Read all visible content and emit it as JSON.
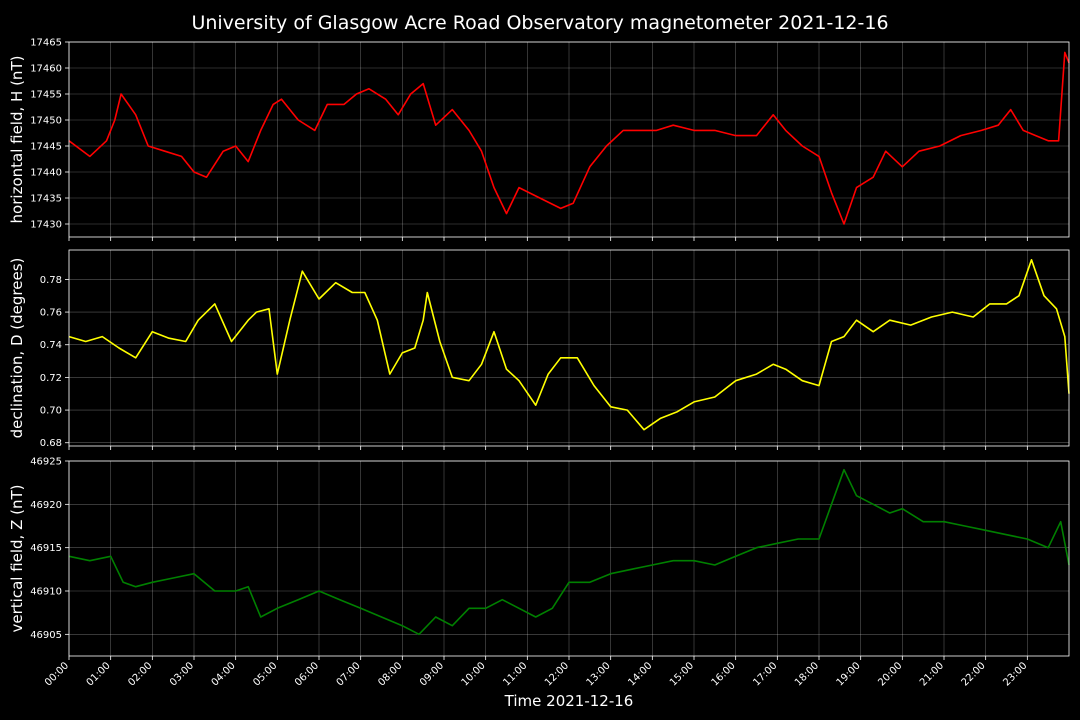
{
  "chart_data": {
    "type": "line",
    "title": "University of Glasgow Acre Road Observatory magnetometer 2021-12-16",
    "xlabel": "Time 2021-12-16",
    "x_ticks": [
      "00:00",
      "01:00",
      "02:00",
      "03:00",
      "04:00",
      "05:00",
      "06:00",
      "07:00",
      "08:00",
      "09:00",
      "10:00",
      "11:00",
      "12:00",
      "13:00",
      "14:00",
      "15:00",
      "16:00",
      "17:00",
      "18:00",
      "19:00",
      "20:00",
      "21:00",
      "22:00",
      "23:00"
    ],
    "xlim": [
      0,
      24
    ],
    "grid": true,
    "panels": [
      {
        "ylabel": "horizontal field, H (nT)",
        "color": "#ff0000",
        "ylim": [
          17427.5,
          17465
        ],
        "yticks": [
          17430,
          17435,
          17440,
          17445,
          17450,
          17455,
          17460,
          17465
        ],
        "tick_decimals": 0,
        "x": [
          0,
          0.5,
          0.9,
          1.1,
          1.25,
          1.6,
          1.9,
          2.3,
          2.7,
          3.0,
          3.3,
          3.7,
          4.0,
          4.3,
          4.6,
          4.9,
          5.1,
          5.5,
          5.9,
          6.2,
          6.6,
          6.9,
          7.2,
          7.6,
          7.9,
          8.2,
          8.5,
          8.8,
          9.2,
          9.6,
          9.9,
          10.2,
          10.5,
          10.8,
          11.3,
          11.8,
          12.1,
          12.5,
          12.9,
          13.3,
          13.7,
          14.1,
          14.5,
          15.0,
          15.5,
          16.0,
          16.5,
          16.9,
          17.2,
          17.6,
          18.0,
          18.3,
          18.6,
          18.9,
          19.3,
          19.6,
          20.0,
          20.4,
          20.9,
          21.4,
          21.9,
          22.3,
          22.6,
          22.9,
          23.2,
          23.5,
          23.75,
          23.9,
          24.0
        ],
        "values": [
          17446,
          17443,
          17446,
          17450,
          17455,
          17451,
          17445,
          17444,
          17443,
          17440,
          17439,
          17444,
          17445,
          17442,
          17448,
          17453,
          17454,
          17450,
          17448,
          17453,
          17453,
          17455,
          17456,
          17454,
          17451,
          17455,
          17457,
          17449,
          17452,
          17448,
          17444,
          17437,
          17432,
          17437,
          17435,
          17433,
          17434,
          17441,
          17445,
          17448,
          17448,
          17448,
          17449,
          17448,
          17448,
          17447,
          17447,
          17451,
          17448,
          17445,
          17443,
          17436,
          17430,
          17437,
          17439,
          17444,
          17441,
          17444,
          17445,
          17447,
          17448,
          17449,
          17452,
          17448,
          17447,
          17446,
          17446,
          17463,
          17461
        ]
      },
      {
        "ylabel": "declination, D (degrees)",
        "color": "#ffff00",
        "ylim": [
          0.678,
          0.798
        ],
        "yticks": [
          0.68,
          0.7,
          0.72,
          0.74,
          0.76,
          0.78
        ],
        "tick_decimals": 2,
        "x": [
          0,
          0.4,
          0.8,
          1.2,
          1.6,
          2.0,
          2.4,
          2.8,
          3.1,
          3.5,
          3.9,
          4.3,
          4.5,
          4.8,
          5.0,
          5.3,
          5.6,
          6.0,
          6.4,
          6.8,
          7.1,
          7.4,
          7.7,
          8.0,
          8.3,
          8.5,
          8.6,
          8.9,
          9.2,
          9.6,
          9.9,
          10.2,
          10.5,
          10.8,
          11.2,
          11.5,
          11.8,
          12.2,
          12.6,
          13.0,
          13.4,
          13.8,
          14.2,
          14.6,
          15.0,
          15.5,
          16.0,
          16.5,
          16.9,
          17.2,
          17.6,
          18.0,
          18.3,
          18.6,
          18.9,
          19.3,
          19.7,
          20.2,
          20.7,
          21.2,
          21.7,
          22.1,
          22.5,
          22.8,
          23.1,
          23.4,
          23.7,
          23.9,
          24.0
        ],
        "values": [
          0.745,
          0.742,
          0.745,
          0.738,
          0.732,
          0.748,
          0.744,
          0.742,
          0.755,
          0.765,
          0.742,
          0.755,
          0.76,
          0.762,
          0.722,
          0.755,
          0.785,
          0.768,
          0.778,
          0.772,
          0.772,
          0.755,
          0.722,
          0.735,
          0.738,
          0.755,
          0.772,
          0.742,
          0.72,
          0.718,
          0.728,
          0.748,
          0.725,
          0.718,
          0.703,
          0.722,
          0.732,
          0.732,
          0.715,
          0.702,
          0.7,
          0.688,
          0.695,
          0.699,
          0.705,
          0.708,
          0.718,
          0.722,
          0.728,
          0.725,
          0.718,
          0.715,
          0.742,
          0.745,
          0.755,
          0.748,
          0.755,
          0.752,
          0.757,
          0.76,
          0.757,
          0.765,
          0.765,
          0.77,
          0.792,
          0.77,
          0.762,
          0.745,
          0.71
        ]
      },
      {
        "ylabel": "vertical field, Z (nT)",
        "color": "#008000",
        "ylim": [
          46902.5,
          46925
        ],
        "yticks": [
          46905,
          46910,
          46915,
          46920,
          46925
        ],
        "tick_decimals": 0,
        "x": [
          0,
          0.5,
          1.0,
          1.3,
          1.6,
          2.0,
          2.5,
          3.0,
          3.5,
          4.0,
          4.3,
          4.6,
          5.0,
          5.5,
          6.0,
          6.5,
          7.0,
          7.5,
          8.0,
          8.4,
          8.8,
          9.2,
          9.6,
          10.0,
          10.4,
          10.8,
          11.2,
          11.6,
          12.0,
          12.5,
          13.0,
          13.5,
          14.0,
          14.5,
          15.0,
          15.5,
          16.0,
          16.5,
          17.0,
          17.5,
          18.0,
          18.3,
          18.6,
          18.9,
          19.3,
          19.7,
          20.0,
          20.5,
          21.0,
          21.5,
          22.0,
          22.5,
          23.0,
          23.5,
          23.8,
          24.0
        ],
        "values": [
          46914,
          46913.5,
          46914,
          46911,
          46910.5,
          46911,
          46911.5,
          46912,
          46910,
          46910,
          46910.5,
          46907,
          46908,
          46909,
          46910,
          46909,
          46908,
          46907,
          46906,
          46905,
          46907,
          46906,
          46908,
          46908,
          46909,
          46908,
          46907,
          46908,
          46911,
          46911,
          46912,
          46912.5,
          46913,
          46913.5,
          46913.5,
          46913,
          46914,
          46915,
          46915.5,
          46916,
          46916,
          46920,
          46924,
          46921,
          46920,
          46919,
          46919.5,
          46918,
          46918,
          46917.5,
          46917,
          46916.5,
          46916,
          46915,
          46918,
          46913
        ]
      }
    ]
  }
}
